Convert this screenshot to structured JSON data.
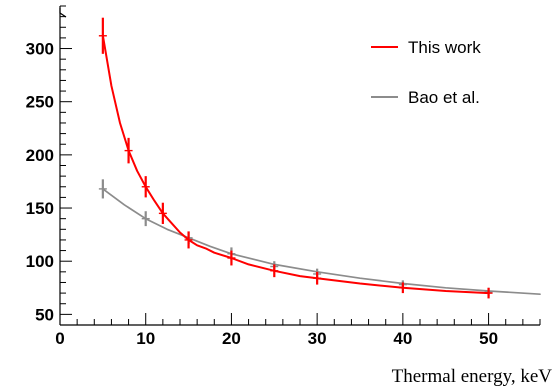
{
  "chart_data": {
    "type": "line",
    "title": "",
    "xlabel": "Thermal energy, keV",
    "ylabel": "",
    "xlim": [
      0,
      56
    ],
    "ylim": [
      40,
      340
    ],
    "x_ticks": [
      0,
      10,
      20,
      30,
      40,
      50
    ],
    "y_ticks": [
      50,
      100,
      150,
      200,
      250,
      300
    ],
    "x_tick_labels": [
      "0",
      "10",
      "20",
      "30",
      "40",
      "50"
    ],
    "y_tick_labels": [
      "50",
      "100",
      "150",
      "200",
      "250",
      "300"
    ],
    "grid": false,
    "legend_position": "top-right",
    "series": [
      {
        "name": "This work",
        "color": "#ff0000",
        "x": [
          5,
          8,
          10,
          12,
          15,
          20,
          25,
          30,
          40,
          50
        ],
        "y": [
          312,
          204,
          170,
          145,
          120,
          103,
          91,
          84,
          75,
          70
        ],
        "errors": [
          17,
          12,
          10,
          10,
          8,
          7,
          6,
          6,
          5,
          5
        ],
        "curve": [
          [
            5,
            312
          ],
          [
            6,
            265
          ],
          [
            7,
            230
          ],
          [
            8,
            204
          ],
          [
            9,
            185
          ],
          [
            10,
            170
          ],
          [
            11,
            157
          ],
          [
            12,
            145
          ],
          [
            13,
            136
          ],
          [
            14,
            127
          ],
          [
            15,
            120
          ],
          [
            16,
            115
          ],
          [
            17,
            112
          ],
          [
            18,
            108
          ],
          [
            20,
            103
          ],
          [
            22,
            97
          ],
          [
            25,
            91
          ],
          [
            28,
            86
          ],
          [
            30,
            84
          ],
          [
            35,
            79
          ],
          [
            40,
            75
          ],
          [
            45,
            72
          ],
          [
            50,
            70
          ]
        ]
      },
      {
        "name": "Bao et al.",
        "color": "#8c8c8c",
        "x": [
          5,
          10,
          15,
          20,
          25,
          30,
          40,
          50
        ],
        "y": [
          168,
          140,
          122,
          107,
          95,
          88,
          78,
          71
        ],
        "errors": [
          9,
          7,
          6,
          6,
          5,
          5,
          4,
          4
        ],
        "curve": [
          [
            5,
            168
          ],
          [
            7.5,
            153
          ],
          [
            10,
            140
          ],
          [
            12.5,
            130
          ],
          [
            15,
            122
          ],
          [
            17.5,
            114
          ],
          [
            20,
            107
          ],
          [
            25,
            97
          ],
          [
            30,
            90
          ],
          [
            35,
            84
          ],
          [
            40,
            79
          ],
          [
            45,
            75
          ],
          [
            50,
            72
          ],
          [
            56,
            69
          ]
        ]
      }
    ]
  }
}
